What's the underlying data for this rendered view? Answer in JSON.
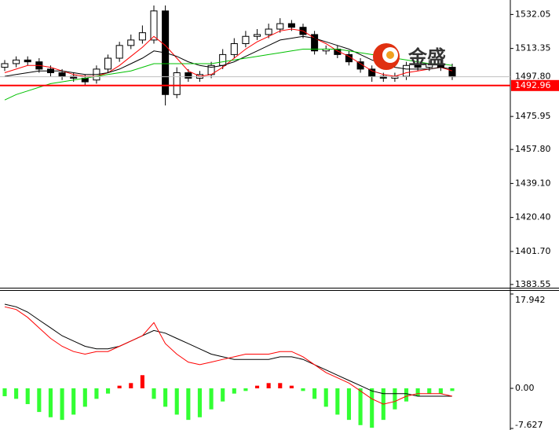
{
  "chart_data": [
    {
      "type": "candlestick",
      "open": [
        1503,
        1505,
        1507,
        1506,
        1502,
        1500,
        1498,
        1497,
        1496,
        1502,
        1508,
        1515,
        1518,
        1518,
        1534,
        1488,
        1500,
        1497,
        1499,
        1504,
        1510,
        1516,
        1520,
        1521,
        1524,
        1527,
        1525,
        1521,
        1512,
        1513,
        1510,
        1506,
        1502,
        1498,
        1497,
        1498,
        1504,
        1503,
        1505,
        1503
      ],
      "high": [
        1507,
        1509,
        1509,
        1508,
        1504,
        1502,
        1500,
        1499,
        1504,
        1510,
        1517,
        1521,
        1526,
        1537,
        1537,
        1503,
        1502,
        1501,
        1506,
        1513,
        1519,
        1523,
        1524,
        1527,
        1530,
        1529,
        1527,
        1523,
        1515,
        1515,
        1512,
        1508,
        1504,
        1500,
        1500,
        1506,
        1506,
        1507,
        1507,
        1505
      ],
      "low": [
        1501,
        1503,
        1504,
        1500,
        1498,
        1496,
        1495,
        1493,
        1494,
        1500,
        1506,
        1513,
        1516,
        1516,
        1482,
        1486,
        1495,
        1495,
        1497,
        1502,
        1508,
        1514,
        1518,
        1519,
        1522,
        1523,
        1519,
        1510,
        1510,
        1508,
        1504,
        1500,
        1495,
        1495,
        1495,
        1496,
        1501,
        1501,
        1501,
        1496
      ],
      "close": [
        1505,
        1507,
        1506,
        1502,
        1500,
        1498,
        1497,
        1495,
        1502,
        1508,
        1515,
        1518,
        1522,
        1534,
        1488,
        1500,
        1497,
        1499,
        1504,
        1510,
        1516,
        1520,
        1521,
        1524,
        1527,
        1525,
        1521,
        1512,
        1513,
        1510,
        1506,
        1502,
        1498,
        1497,
        1498,
        1504,
        1503,
        1505,
        1503,
        1497.8
      ],
      "up_color": "#ffffff",
      "down_color": "#000000",
      "series": [
        {
          "color": "#ff0000",
          "values": [
            1500,
            1502,
            1504,
            1504,
            1503,
            1501,
            1499,
            1498,
            1498,
            1500,
            1504,
            1509,
            1514,
            1520,
            1515,
            1508,
            1501,
            1498,
            1499,
            1503,
            1508,
            1513,
            1517,
            1520,
            1523,
            1524,
            1523,
            1519,
            1516,
            1512,
            1509,
            1505,
            1501,
            1499,
            1498,
            1500,
            1501,
            1502,
            1503,
            1501
          ]
        },
        {
          "color": "#000000",
          "values": [
            1498,
            1499,
            1500,
            1501,
            1501,
            1501,
            1500,
            1499,
            1499,
            1500,
            1502,
            1505,
            1508,
            1512,
            1511,
            1509,
            1506,
            1504,
            1503,
            1504,
            1506,
            1509,
            1512,
            1515,
            1518,
            1519,
            1520,
            1519,
            1517,
            1515,
            1513,
            1510,
            1507,
            1505,
            1503,
            1502,
            1502,
            1502,
            1503,
            1502
          ]
        },
        {
          "color": "#00c000",
          "values": [
            1485,
            1488,
            1490,
            1492,
            1494,
            1495,
            1496,
            1497,
            1498,
            1499,
            1500,
            1501,
            1503,
            1505,
            1505,
            1505,
            1505,
            1505,
            1505,
            1506,
            1507,
            1508,
            1509,
            1510,
            1511,
            1512,
            1513,
            1513,
            1513,
            1513,
            1512,
            1511,
            1510,
            1509,
            1508,
            1507,
            1506,
            1505,
            1505,
            1504
          ]
        }
      ],
      "ylim": [
        1382.2,
        1540
      ],
      "yticks": [
        1532.05,
        1513.35,
        1475.95,
        {
          "value": 1457.8,
          "label": "1457.80"
        },
        {
          "value": 1439.1,
          "label": "1439.10"
        },
        {
          "value": 1420.4,
          "label": "1420.40"
        },
        {
          "value": 1401.7,
          "label": "1401.70"
        },
        1383.55
      ],
      "current_price": {
        "value": 1497.8,
        "label": "1497.80"
      },
      "level_line": {
        "value": 1492.96,
        "label": "1492.96",
        "color": "#ff0000"
      },
      "watermark": "金盛"
    },
    {
      "type": "macd",
      "histogram": [
        -1.5,
        -2,
        -3,
        -4.5,
        -5.5,
        -6,
        -5,
        -3.5,
        -2,
        -1,
        0.5,
        1,
        2.5,
        -2,
        -3.5,
        -5,
        -6,
        -5.5,
        -4,
        -2.5,
        -1,
        -0.5,
        0.5,
        1,
        1,
        0.5,
        -0.5,
        -2,
        -3.5,
        -5,
        -6,
        -7,
        -7.5,
        -6,
        -4,
        -2.5,
        -1.5,
        -1,
        -1,
        -0.5
      ],
      "positive_color": "#ff0000",
      "negative_color": "#33ff33",
      "series": [
        {
          "color": "#000000",
          "values": [
            16,
            15.5,
            14.5,
            13,
            11.5,
            10,
            9,
            8,
            7.5,
            7.5,
            8,
            9,
            10,
            11,
            10.5,
            9.5,
            8.5,
            7.5,
            6.5,
            6,
            5.5,
            5.5,
            5.5,
            5.5,
            6,
            6,
            5.5,
            4.5,
            3.5,
            2.5,
            1.5,
            0.5,
            -0.5,
            -1,
            -1,
            -1,
            -1.5,
            -1.5,
            -1.5,
            -1.5
          ]
        },
        {
          "color": "#ff0000",
          "values": [
            15.5,
            15,
            13.5,
            11.5,
            9.5,
            8,
            7,
            6.5,
            7,
            7,
            8,
            9,
            10,
            12.5,
            8.5,
            6.5,
            5,
            4.5,
            5,
            5.5,
            6,
            6.5,
            6.5,
            6.5,
            7,
            7,
            6,
            4.5,
            3,
            2,
            1,
            -0.5,
            -2,
            -3,
            -2.5,
            -1.5,
            -1,
            -1,
            -1,
            -1.5
          ]
        }
      ],
      "ylim": [
        -7.627,
        17.942
      ],
      "yticks": [
        17.942,
        {
          "value": 0,
          "label": "0.00"
        },
        -7.627
      ]
    }
  ]
}
